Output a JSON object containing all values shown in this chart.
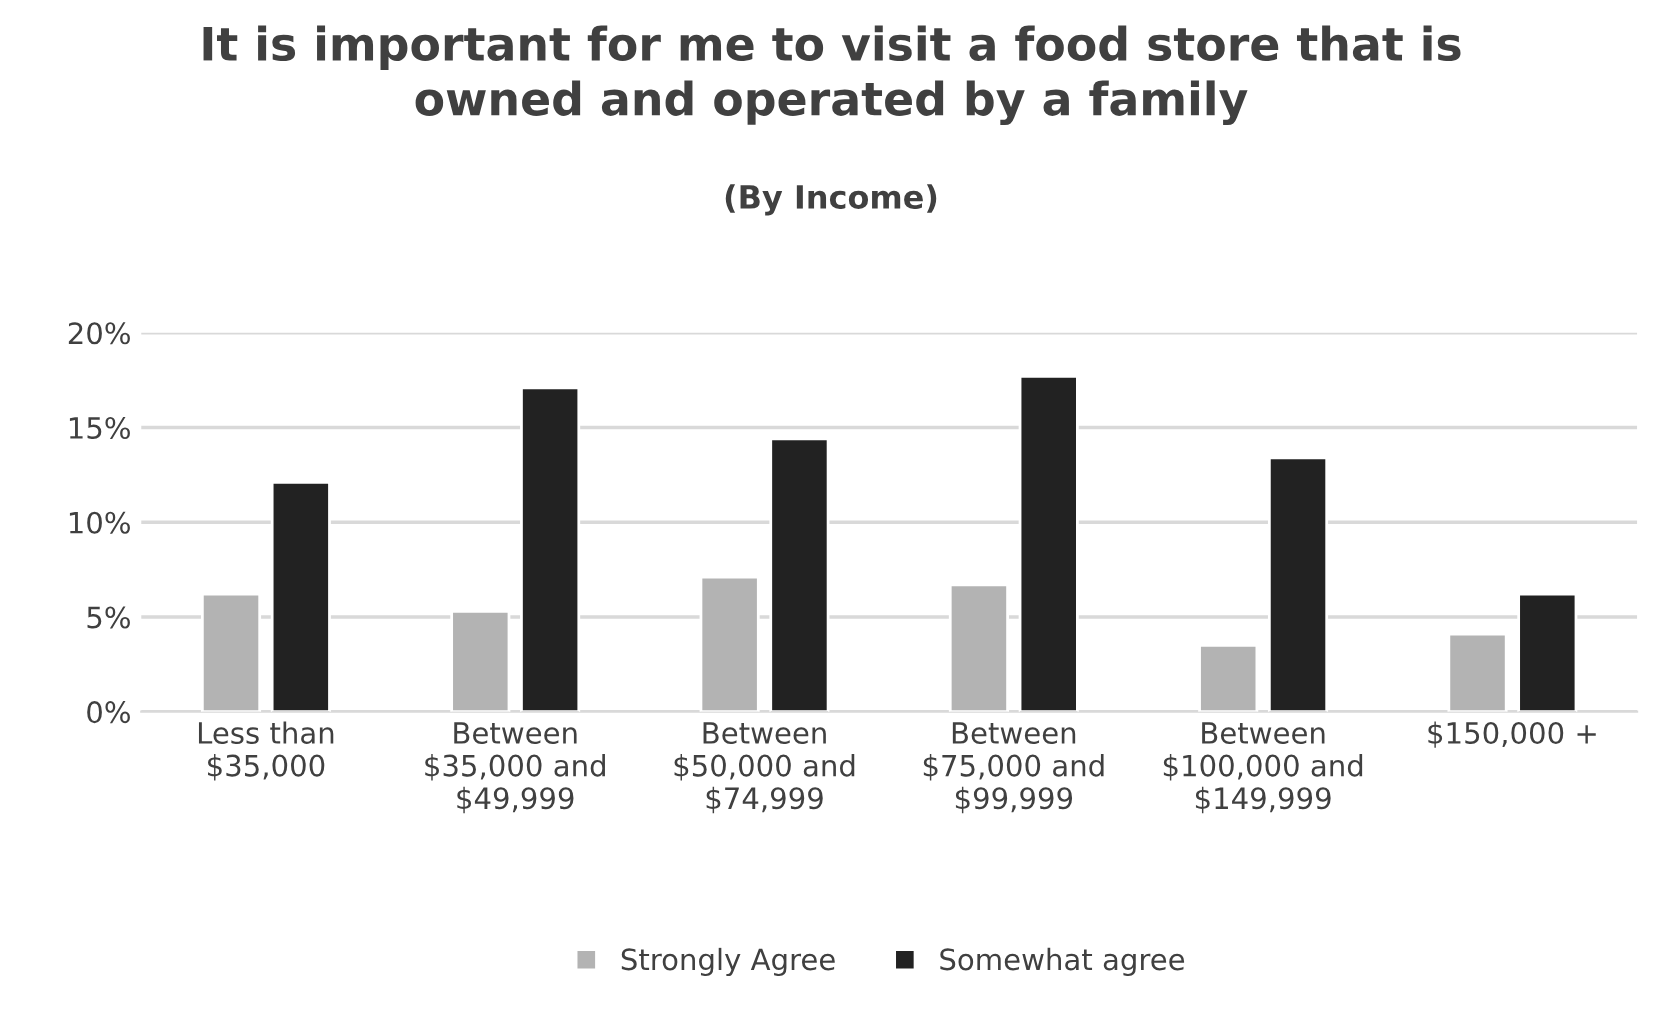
{
  "chart_data": {
    "type": "bar",
    "title": "It is important for me to visit a food store that is\nowned and operated by a family",
    "subtitle": "(By Income)",
    "categories": [
      "Less than\n$35,000",
      "Between\n$35,000 and\n$49,999",
      "Between\n$50,000 and\n$74,999",
      "Between\n$75,000 and\n$99,999",
      "Between\n$100,000 and\n$149,999",
      "$150,000 +"
    ],
    "series": [
      {
        "name": "Strongly Agree",
        "color": "#b3b3b3",
        "values": [
          6.2,
          5.3,
          7.1,
          6.7,
          3.5,
          4.1
        ]
      },
      {
        "name": "Somewhat agree",
        "color": "#222222",
        "values": [
          12.1,
          17.1,
          14.4,
          17.7,
          13.4,
          6.2
        ]
      }
    ],
    "ylim": [
      0,
      20
    ],
    "yticks": [
      {
        "value": 0,
        "label": "0%"
      },
      {
        "value": 5,
        "label": "5%"
      },
      {
        "value": 10,
        "label": "10%"
      },
      {
        "value": 15,
        "label": "15%"
      },
      {
        "value": 20,
        "label": "20%"
      }
    ],
    "grid": "y",
    "legend": "bottom"
  }
}
